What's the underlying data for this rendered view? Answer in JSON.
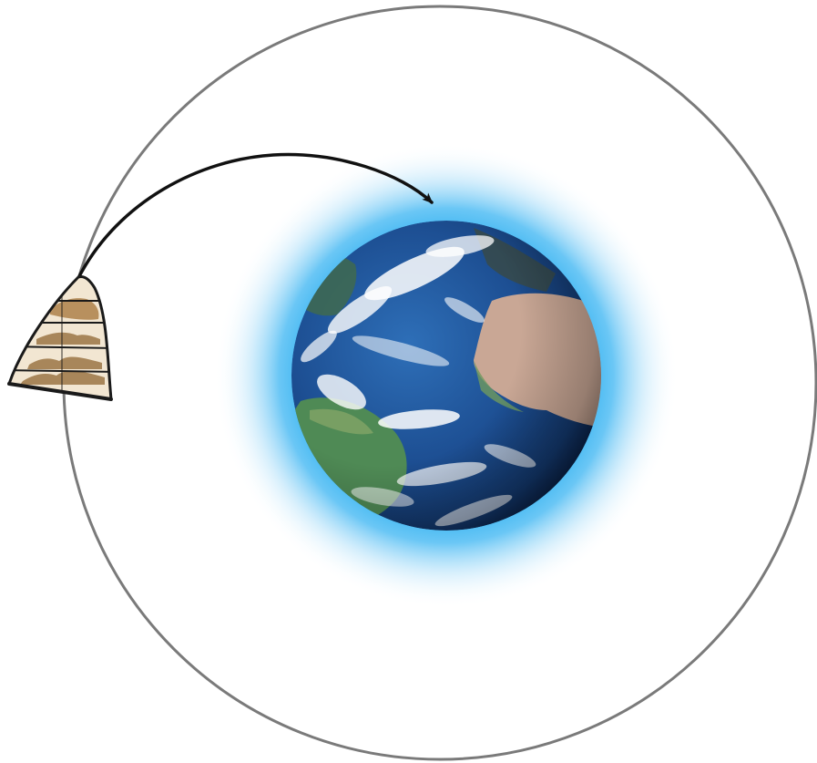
{
  "diagram": {
    "elements": [
      {
        "name": "orbit-ring",
        "description_icon": "circle"
      },
      {
        "name": "earth-globe",
        "description_icon": "planet-earth"
      },
      {
        "name": "atmosphere-glow",
        "description_icon": "glow"
      },
      {
        "name": "orbiting-object",
        "description_icon": "bell-shaped-capsule-with-strata"
      },
      {
        "name": "trajectory-arrow",
        "description_icon": "curved-arrow"
      }
    ],
    "colors": {
      "orbit": "#7a7a7a",
      "glow": "#39b4f2",
      "ocean": "#1d4f93",
      "ocean_dark": "#0b2652",
      "land_green": "#4f8a55",
      "land_desert": "#c9a795",
      "clouds": "#ffffff",
      "capsule_fill": "#f2e6d2",
      "capsule_stroke": "#1a1a1a",
      "strata": "#a8865a",
      "arrow": "#111111"
    }
  }
}
